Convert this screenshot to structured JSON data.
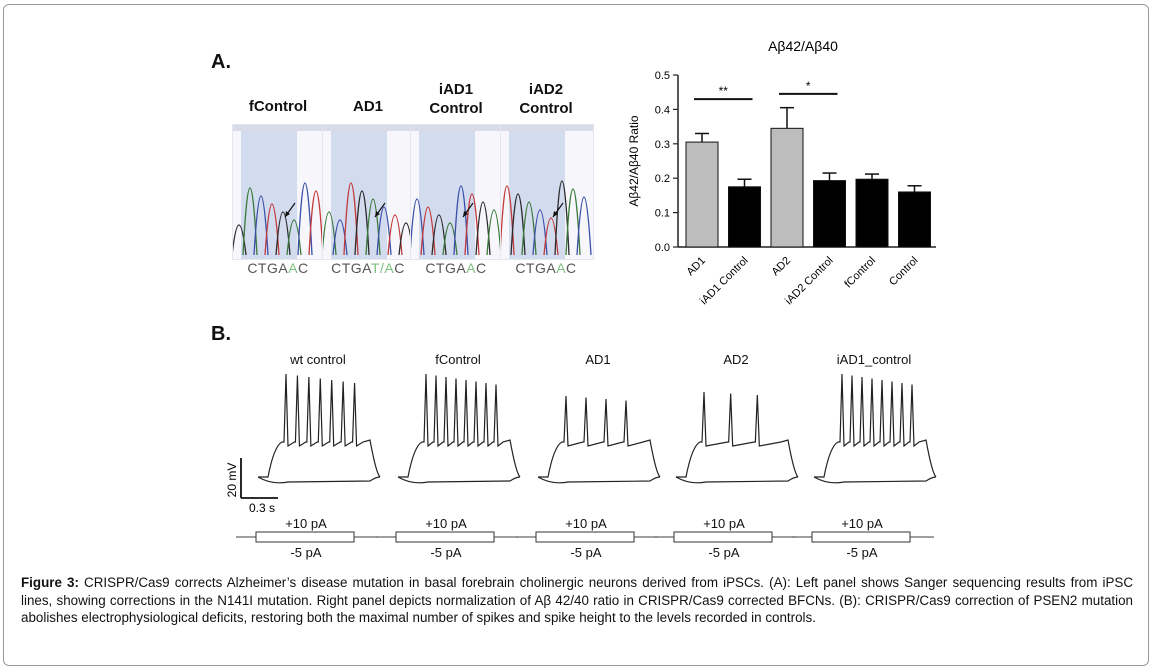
{
  "panels": {
    "a_label": "A.",
    "b_label": "B."
  },
  "sequencing": {
    "samples": [
      {
        "title": "fControl",
        "seq_pre": "CTGA",
        "seq_mut": "A",
        "seq_post": "C"
      },
      {
        "title": "AD1",
        "seq_pre": "CTGA",
        "seq_mut": "T/A",
        "seq_post": "C"
      },
      {
        "title": "iAD1\nControl",
        "seq_pre": "CTGA",
        "seq_mut": "A",
        "seq_post": "C"
      },
      {
        "title": "iAD2\nControl",
        "seq_pre": "CTGA",
        "seq_mut": "A",
        "seq_post": "C"
      }
    ]
  },
  "chart_data": {
    "type": "bar",
    "title": "Aβ42/Aβ40",
    "ylabel": "Aβ42/Aβ40 Ratio",
    "xlabel": "",
    "ylim": [
      0,
      0.5
    ],
    "yticks": [
      "0.0",
      "0.1",
      "0.2",
      "0.3",
      "0.4",
      "0.5"
    ],
    "categories": [
      "AD1",
      "iAD1 Control",
      "AD2",
      "iAD2 Control",
      "fControl",
      "Control"
    ],
    "values": [
      0.305,
      0.175,
      0.345,
      0.193,
      0.197,
      0.16
    ],
    "errors": [
      0.025,
      0.022,
      0.06,
      0.022,
      0.015,
      0.018
    ],
    "colors": [
      "#bdbdbd",
      "#000000",
      "#bdbdbd",
      "#000000",
      "#000000",
      "#000000"
    ],
    "significance": [
      {
        "from": 0,
        "to": 1,
        "label": "**",
        "y": 0.43
      },
      {
        "from": 2,
        "to": 3,
        "label": "*",
        "y": 0.445
      }
    ],
    "grid": false
  },
  "ephys": {
    "traces": [
      {
        "title": "wt control",
        "spikes": 7
      },
      {
        "title": "fControl",
        "spikes": 8
      },
      {
        "title": "AD1",
        "spikes": 4
      },
      {
        "title": "AD2",
        "spikes": 3
      },
      {
        "title": "iAD1_control",
        "spikes": 8
      }
    ],
    "scale_v": "20 mV",
    "scale_t": "0.3 s",
    "pulse_pos": "+10 pA",
    "pulse_neg": "-5 pA"
  },
  "caption": {
    "label": "Figure 3:",
    "text": " CRISPR/Cas9 corrects Alzheimer’s disease mutation in basal forebrain cholinergic neurons derived from iPSCs.  (A): Left panel shows Sanger sequencing results from iPSC lines, showing corrections in the N141I mutation. Right panel depicts normalization of Aβ 42/40 ratio in CRISPR/Cas9 corrected BFCNs.  (B): CRISPR/Cas9 correction of PSEN2 mutation abolishes electrophysiological deficits, restoring both the maximal number of spikes and spike height to the levels recorded in controls."
  }
}
